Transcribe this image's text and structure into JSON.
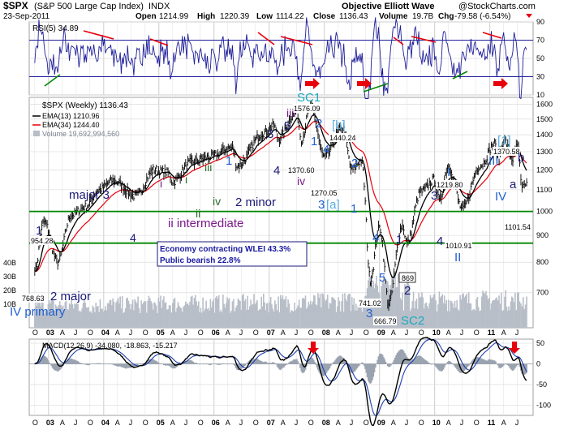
{
  "header": {
    "symbol": "$SPX",
    "name": "(S&P 500 Large Cap Index)",
    "exchange": "INDX",
    "date": "23-Sep-2011",
    "open_label": "Open",
    "open": "1214.99",
    "high_label": "High",
    "high": "1220.39",
    "low_label": "Low",
    "low": "1114.22",
    "close_label": "Close",
    "close": "1136.43",
    "volume_label": "Volume",
    "volume": "19.7B",
    "chg_label": "Chg",
    "chg": "-79.58 (-6.54%)",
    "source": "Objective Elliott Wave",
    "source2": "@StockCharts.com"
  },
  "colors": {
    "price": "#000000",
    "ema13": "#000000",
    "ema34": "#e8000b",
    "rsi": "#1e1e9a",
    "green_line": "#008800",
    "red_annot": "#e8000b",
    "elliott_dark": "#1b1a7a",
    "elliott_blue": "#1f5fd0",
    "elliott_purple": "#7b1a8a",
    "elliott_cyan": "#1aa9c0",
    "elliott_green": "#2a6a2a",
    "macd_hist": "#9aa3b0"
  },
  "chart_data": [
    {
      "type": "line",
      "panel": "rsi",
      "title": "RSI(5) 34.89",
      "ylim": [
        10,
        90
      ],
      "yticks": [
        "90",
        "70",
        "50",
        "30",
        "10"
      ],
      "reference_lines": [
        70,
        30
      ],
      "grid": true
    },
    {
      "type": "line",
      "panel": "price",
      "title": "$SPX (Weekly) 1136.43",
      "legend": [
        {
          "name": "EMA(13) 1210.96",
          "color": "#000000"
        },
        {
          "name": "EMA(34) 1244.40",
          "color": "#e8000b"
        },
        {
          "name": "Volume 19,692,994,560",
          "color": "#9aa3b0"
        }
      ],
      "ylim": [
        600,
        1650
      ],
      "log_scale": true,
      "yticks": [
        "1600",
        "1500",
        "1400",
        "1300",
        "1200",
        "1100",
        "1000",
        "900",
        "800",
        "700"
      ],
      "volume_ticks": [
        "40B",
        "30B",
        "20B",
        "10B"
      ],
      "xticks": [
        "O",
        "03",
        "A",
        "J",
        "O",
        "04",
        "A",
        "J",
        "O",
        "05",
        "A",
        "J",
        "O",
        "06",
        "A",
        "J",
        "O",
        "07",
        "A",
        "J",
        "O",
        "08",
        "A",
        "J",
        "O",
        "09",
        "A",
        "J",
        "O",
        "10",
        "A",
        "J",
        "O",
        "11",
        "A",
        "J"
      ],
      "x_start": "2002-10",
      "x_end": "2011-09",
      "series": [
        {
          "name": "$SPX",
          "points": [
            [
              "2002-10",
              768.63
            ],
            [
              "2002-12",
              954.28
            ],
            [
              "2003-03",
              800.73
            ],
            [
              "2003-06",
              985
            ],
            [
              "2003-09",
              1020
            ],
            [
              "2003-12",
              1100
            ],
            [
              "2004-03",
              1145
            ],
            [
              "2004-08",
              1070
            ],
            [
              "2004-12",
              1200
            ],
            [
              "2005-03",
              1185
            ],
            [
              "2005-04",
              1140
            ],
            [
              "2005-08",
              1240
            ],
            [
              "2005-12",
              1270
            ],
            [
              "2006-05",
              1325
            ],
            [
              "2006-06",
              1220
            ],
            [
              "2006-12",
              1415
            ],
            [
              "2007-02",
              1460
            ],
            [
              "2007-03",
              1375
            ],
            [
              "2007-07",
              1555
            ],
            [
              "2007-08",
              1370.6
            ],
            [
              "2007-10",
              1576.09
            ],
            [
              "2008-01",
              1270.05
            ],
            [
              "2008-05",
              1440.24
            ],
            [
              "2008-07",
              1200
            ],
            [
              "2008-09",
              1250
            ],
            [
              "2008-11",
              741.02
            ],
            [
              "2009-01",
              930
            ],
            [
              "2009-03",
              666.79
            ],
            [
              "2009-06",
              940
            ],
            [
              "2009-07",
              869
            ],
            [
              "2009-10",
              1090
            ],
            [
              "2010-01",
              1150
            ],
            [
              "2010-02",
              1045
            ],
            [
              "2010-04",
              1219.8
            ],
            [
              "2010-07",
              1010.91
            ],
            [
              "2010-11",
              1225
            ],
            [
              "2011-02",
              1343
            ],
            [
              "2011-03",
              1255
            ],
            [
              "2011-04",
              1370.58
            ],
            [
              "2011-06",
              1258
            ],
            [
              "2011-07",
              1345
            ],
            [
              "2011-08",
              1101.54
            ],
            [
              "2011-09",
              1136.43
            ]
          ]
        }
      ],
      "annotations": {
        "price_labels": [
          "1576.09",
          "1440.24",
          "1370.60",
          "1270.05",
          "1370.58",
          "1219.80",
          "1010.91",
          "1101.54",
          "954.28",
          "768.63",
          "741.02",
          "666.79",
          "869"
        ],
        "waves": [
          {
            "text": "1",
            "color": "dark"
          },
          {
            "text": "2 major",
            "color": "dark"
          },
          {
            "text": "IV primary",
            "color": "blue"
          },
          {
            "text": "major 3",
            "color": "dark"
          },
          {
            "text": "4",
            "color": "dark"
          },
          {
            "text": "i",
            "color": "purple"
          },
          {
            "text": "i",
            "color": "green"
          },
          {
            "text": "ii",
            "color": "green"
          },
          {
            "text": "ii intermediate",
            "color": "purple"
          },
          {
            "text": "iii",
            "color": "green"
          },
          {
            "text": "iv",
            "color": "green"
          },
          {
            "text": "1",
            "color": "dark"
          },
          {
            "text": "2 minor",
            "color": "dark"
          },
          {
            "text": "3",
            "color": "dark"
          },
          {
            "text": "4",
            "color": "dark"
          },
          {
            "text": "5",
            "color": "dark"
          },
          {
            "text": "iii",
            "color": "purple"
          },
          {
            "text": "iv",
            "color": "purple"
          },
          {
            "text": "SC1",
            "color": "cyan"
          },
          {
            "text": "1",
            "color": "blue"
          },
          {
            "text": "2",
            "color": "blue"
          },
          {
            "text": "[b]",
            "color": "light"
          },
          {
            "text": "3",
            "color": "blue"
          },
          {
            "text": "[a]",
            "color": "light"
          },
          {
            "text": "4",
            "color": "blue"
          },
          {
            "text": "2",
            "color": "blue"
          },
          {
            "text": "1",
            "color": "blue"
          },
          {
            "text": "4",
            "color": "blue"
          },
          {
            "text": "5",
            "color": "blue"
          },
          {
            "text": "3",
            "color": "blue"
          },
          {
            "text": "1",
            "color": "dark"
          },
          {
            "text": "2",
            "color": "dark"
          },
          {
            "text": "SC2",
            "color": "cyan"
          },
          {
            "text": "3",
            "color": "dark"
          },
          {
            "text": "4",
            "color": "dark"
          },
          {
            "text": "I",
            "color": "blue"
          },
          {
            "text": "II",
            "color": "blue"
          },
          {
            "text": "[1]",
            "color": "light"
          },
          {
            "text": "III",
            "color": "blue"
          },
          {
            "text": "IV",
            "color": "blue"
          },
          {
            "text": "a",
            "color": "dark"
          },
          {
            "text": "b",
            "color": "dark"
          }
        ],
        "note": [
          "Economy contracting WLEI 43.3%",
          "Public bearish 22.8%"
        ]
      }
    },
    {
      "type": "line",
      "panel": "macd",
      "title": "MACD(12,26,9) -34.080, -18.863, -15.217",
      "ylim": [
        -125,
        60
      ],
      "yticks": [
        "50",
        "0",
        "-50",
        "-100"
      ],
      "xticks": [
        "O",
        "03",
        "A",
        "J",
        "O",
        "04",
        "A",
        "J",
        "O",
        "05",
        "A",
        "J",
        "O",
        "06",
        "A",
        "J",
        "O",
        "07",
        "A",
        "J",
        "O",
        "08",
        "A",
        "J",
        "O",
        "09",
        "A",
        "J",
        "O",
        "10",
        "A",
        "J",
        "O",
        "11",
        "A",
        "J"
      ]
    }
  ]
}
